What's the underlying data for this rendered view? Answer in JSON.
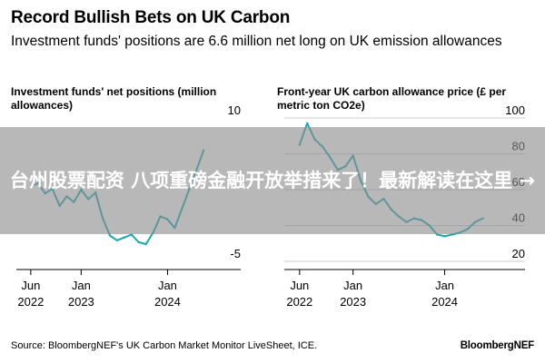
{
  "header": {
    "title": "Record Bullish Bets on UK Carbon",
    "subtitle": "Investment funds' positions are 6.6 million net long on UK emission allowances"
  },
  "footer": {
    "source": "Source: BloombergNEF's UK Carbon Market Monitor LiveSheet, ICE.",
    "brand": "BloombergNEF"
  },
  "overlay": {
    "text": "台州股票配资 八项重磅金融开放举措来了！最新解读在这里 →"
  },
  "colors": {
    "line": "#1aa6b4",
    "axis": "#000000",
    "grid": "#cccccc",
    "overlay": "#8c8c8c"
  },
  "chart_data": [
    {
      "type": "line",
      "title": "Investment funds' net positions (million allowances)",
      "xlabel": "",
      "ylabel": "",
      "ylim": [
        -5,
        10
      ],
      "yticks": [
        "10",
        "-5"
      ],
      "xticks": [
        {
          "line1": "Jun",
          "line2": "2022",
          "date": "2022-06"
        },
        {
          "line1": "Jan",
          "line2": "2023",
          "date": "2023-01"
        },
        {
          "line1": "Jan",
          "line2": "2024",
          "date": "2024-01"
        }
      ],
      "grid": false,
      "series": [
        {
          "x": [
            "2022-06",
            "2022-07",
            "2022-08",
            "2022-09",
            "2022-10",
            "2022-11",
            "2022-12",
            "2023-01",
            "2023-02",
            "2023-03",
            "2023-04",
            "2023-05",
            "2023-06",
            "2023-07",
            "2023-08",
            "2023-09",
            "2023-10",
            "2023-11",
            "2023-12",
            "2024-01",
            "2024-02",
            "2024-03",
            "2024-04",
            "2024-05",
            "2024-06"
          ],
          "values": [
            2.8,
            3.2,
            2.1,
            2.6,
            0.8,
            1.8,
            1.2,
            2.5,
            1.5,
            2.2,
            -0.5,
            -2.3,
            -2.8,
            -2.5,
            -2.2,
            -3.0,
            -3.2,
            -2.0,
            -0.3,
            -0.6,
            -1.5,
            0.5,
            2.5,
            4.5,
            6.6
          ]
        }
      ]
    },
    {
      "type": "line",
      "title": "Front-year UK carbon allowance price (£ per metric ton CO2e)",
      "xlabel": "",
      "ylabel": "",
      "ylim": [
        20,
        100
      ],
      "yticks": [
        "100",
        "80",
        "60",
        "40",
        "20"
      ],
      "xticks": [
        {
          "line1": "Jun",
          "line2": "2022",
          "date": "2022-06"
        },
        {
          "line1": "Jan",
          "line2": "2023",
          "date": "2023-01"
        },
        {
          "line1": "Jan",
          "line2": "2024",
          "date": "2024-01"
        }
      ],
      "grid": true,
      "series": [
        {
          "x": [
            "2022-06",
            "2022-07",
            "2022-08",
            "2022-09",
            "2022-10",
            "2022-11",
            "2022-12",
            "2023-01",
            "2023-02",
            "2023-03",
            "2023-04",
            "2023-05",
            "2023-06",
            "2023-07",
            "2023-08",
            "2023-09",
            "2023-10",
            "2023-11",
            "2023-12",
            "2024-01",
            "2024-02",
            "2024-03",
            "2024-04",
            "2024-05",
            "2024-06"
          ],
          "values": [
            85,
            97,
            88,
            84,
            78,
            71,
            73,
            79,
            65,
            56,
            52,
            55,
            49,
            45,
            42,
            44,
            43,
            40,
            35,
            34,
            35,
            36,
            38,
            42,
            44
          ]
        }
      ]
    }
  ]
}
